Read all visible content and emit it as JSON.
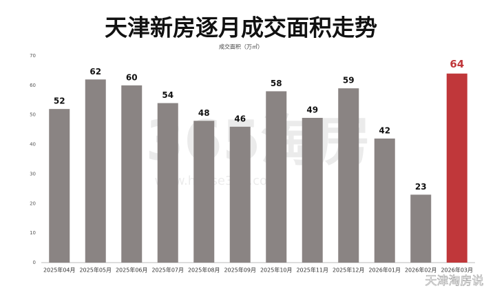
{
  "chart_data": {
    "type": "bar",
    "title": "天津新房逐月成交面积走势",
    "subtitle": "成交面积（万㎡）",
    "categories": [
      "2025年04月",
      "2025年05月",
      "2025年06月",
      "2025年07月",
      "2025年08月",
      "2025年09月",
      "2025年10月",
      "2025年11月",
      "2025年12月",
      "2026年01月",
      "2026年02月",
      "2026年03月"
    ],
    "values": [
      52,
      62,
      60,
      54,
      48,
      46,
      58,
      49,
      59,
      42,
      23,
      64
    ],
    "color": "#8a8483",
    "colors": [
      "#8a8483",
      "#8a8483",
      "#8a8483",
      "#8a8483",
      "#8a8483",
      "#8a8483",
      "#8a8483",
      "#8a8483",
      "#8a8483",
      "#8a8483",
      "#8a8483",
      "#c0373a"
    ],
    "ylim": [
      0,
      70
    ],
    "yticks": [
      0,
      10,
      20,
      30,
      40,
      50,
      60,
      70
    ],
    "grid": false,
    "watermarks": [
      "365淘房",
      "www.house365.com",
      "天津淘房说"
    ]
  }
}
